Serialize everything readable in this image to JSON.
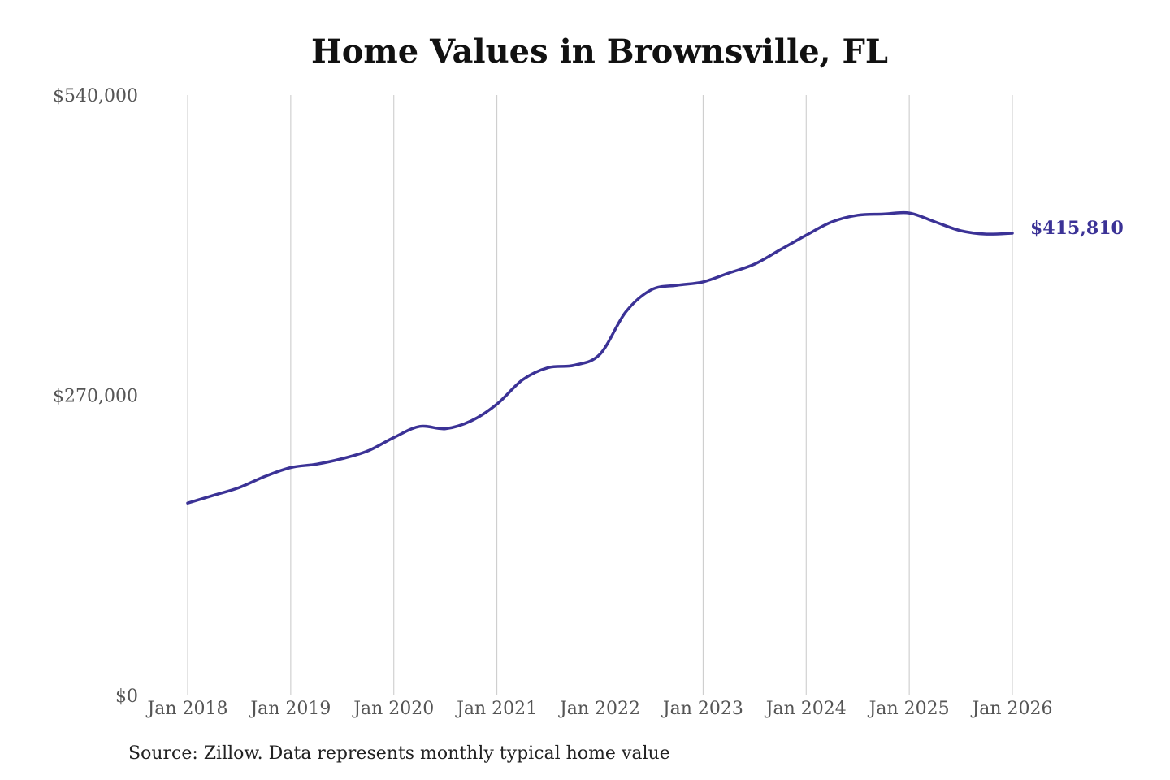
{
  "chart_data": {
    "type": "line",
    "title": "Home Values in Brownsville, FL",
    "source_note": "Source: Zillow. Data represents monthly typical home value",
    "ylim": [
      0,
      540000
    ],
    "y_ticks": [
      {
        "value": 0,
        "label": "$0"
      },
      {
        "value": 270000,
        "label": "$270,000"
      },
      {
        "value": 540000,
        "label": "$540,000"
      }
    ],
    "x_ticks": [
      "Jan 2018",
      "Jan 2019",
      "Jan 2020",
      "Jan 2021",
      "Jan 2022",
      "Jan 2023",
      "Jan 2024",
      "Jan 2025",
      "Jan 2026"
    ],
    "grid": "vertical",
    "line_color": "#3b3296",
    "end_label": "$415,810",
    "series": [
      {
        "points": [
          {
            "x": "2018-01",
            "y": 173000
          },
          {
            "x": "2018-04",
            "y": 180000
          },
          {
            "x": "2018-07",
            "y": 187000
          },
          {
            "x": "2018-10",
            "y": 197000
          },
          {
            "x": "2019-01",
            "y": 205000
          },
          {
            "x": "2019-04",
            "y": 208000
          },
          {
            "x": "2019-07",
            "y": 213000
          },
          {
            "x": "2019-10",
            "y": 220000
          },
          {
            "x": "2020-01",
            "y": 232000
          },
          {
            "x": "2020-04",
            "y": 242000
          },
          {
            "x": "2020-07",
            "y": 240000
          },
          {
            "x": "2020-10",
            "y": 247000
          },
          {
            "x": "2021-01",
            "y": 262000
          },
          {
            "x": "2021-04",
            "y": 284000
          },
          {
            "x": "2021-07",
            "y": 295000
          },
          {
            "x": "2021-10",
            "y": 297000
          },
          {
            "x": "2022-01",
            "y": 307000
          },
          {
            "x": "2022-04",
            "y": 345000
          },
          {
            "x": "2022-07",
            "y": 365000
          },
          {
            "x": "2022-10",
            "y": 369000
          },
          {
            "x": "2023-01",
            "y": 372000
          },
          {
            "x": "2023-04",
            "y": 380000
          },
          {
            "x": "2023-07",
            "y": 388000
          },
          {
            "x": "2023-10",
            "y": 401000
          },
          {
            "x": "2024-01",
            "y": 414000
          },
          {
            "x": "2024-04",
            "y": 426000
          },
          {
            "x": "2024-07",
            "y": 432000
          },
          {
            "x": "2024-10",
            "y": 433000
          },
          {
            "x": "2025-01",
            "y": 434000
          },
          {
            "x": "2025-04",
            "y": 426000
          },
          {
            "x": "2025-07",
            "y": 418000
          },
          {
            "x": "2025-10",
            "y": 415000
          },
          {
            "x": "2026-01",
            "y": 415810
          }
        ]
      }
    ]
  }
}
